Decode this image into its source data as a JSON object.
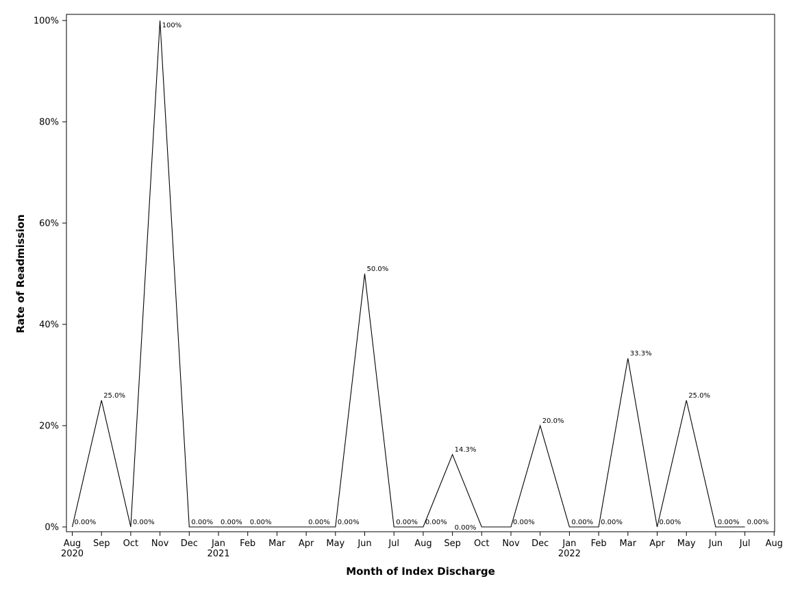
{
  "chart_data": {
    "type": "line",
    "title": "",
    "xlabel": "Month of Index Discharge",
    "ylabel": "Rate of Readmission",
    "ylim": [
      0,
      100
    ],
    "y_unit": "%",
    "yticks": [
      0,
      20,
      40,
      60,
      80,
      100
    ],
    "ytick_labels": [
      "0%",
      "20%",
      "40%",
      "60%",
      "80%",
      "100%"
    ],
    "grid": false,
    "legend": "none",
    "line_color": "#000000",
    "x_tick_months": [
      "2020-08",
      "2020-09",
      "2020-10",
      "2020-11",
      "2020-12",
      "2021-01",
      "2021-02",
      "2021-03",
      "2021-04",
      "2021-05",
      "2021-06",
      "2021-07",
      "2021-08",
      "2021-09",
      "2021-10",
      "2021-11",
      "2021-12",
      "2022-01",
      "2022-02",
      "2022-03",
      "2022-04",
      "2022-05",
      "2022-06",
      "2022-07",
      "2022-08"
    ],
    "x_tick_labels": [
      "Aug",
      "Sep",
      "Oct",
      "Nov",
      "Dec",
      "Jan",
      "Feb",
      "Mar",
      "Apr",
      "May",
      "Jun",
      "Jul",
      "Aug",
      "Sep",
      "Oct",
      "Nov",
      "Dec",
      "Jan",
      "Feb",
      "Mar",
      "Apr",
      "May",
      "Jun",
      "Jul",
      "Aug"
    ],
    "x_tick_year_labels": [
      "2020",
      "",
      "",
      "",
      "",
      "2021",
      "",
      "",
      "",
      "",
      "",
      "",
      "",
      "",
      "",
      "",
      "",
      "2022",
      "",
      "",
      "",
      "",
      "",
      "",
      ""
    ],
    "series": [
      {
        "points": [
          {
            "x": "2020-08",
            "y": 0,
            "label": "0.00%"
          },
          {
            "x": "2020-09",
            "y": 25,
            "label": "25.0%"
          },
          {
            "x": "2020-10",
            "y": 0,
            "label": "0.00%"
          },
          {
            "x": "2020-11",
            "y": 100,
            "label": "100%"
          },
          {
            "x": "2020-12",
            "y": 0,
            "label": "0.00%"
          },
          {
            "x": "2021-01",
            "y": 0,
            "label": "0.00%"
          },
          {
            "x": "2021-02",
            "y": 0,
            "label": "0.00%"
          },
          {
            "x": "2021-04",
            "y": 0,
            "label": "0.00%"
          },
          {
            "x": "2021-05",
            "y": 0,
            "label": "0.00%"
          },
          {
            "x": "2021-06",
            "y": 50,
            "label": "50.0%"
          },
          {
            "x": "2021-07",
            "y": 0,
            "label": "0.00%"
          },
          {
            "x": "2021-08",
            "y": 0,
            "label": "0.00%"
          },
          {
            "x": "2021-09",
            "y": 14.3,
            "label": "14.3%"
          },
          {
            "x": "2021-10",
            "y": 0,
            "label": "0.00%"
          },
          {
            "x": "2021-11",
            "y": 0,
            "label": "0.00%"
          },
          {
            "x": "2021-12",
            "y": 20,
            "label": "20.0%"
          },
          {
            "x": "2022-01",
            "y": 0,
            "label": "0.00%"
          },
          {
            "x": "2022-02",
            "y": 0,
            "label": "0.00%"
          },
          {
            "x": "2022-03",
            "y": 33.3,
            "label": "33.3%"
          },
          {
            "x": "2022-04",
            "y": 0,
            "label": "0.00%"
          },
          {
            "x": "2022-05",
            "y": 25,
            "label": "25.0%"
          },
          {
            "x": "2022-06",
            "y": 0,
            "label": "0.00%"
          },
          {
            "x": "2022-07",
            "y": 0,
            "label": "0.00%"
          }
        ]
      }
    ]
  }
}
